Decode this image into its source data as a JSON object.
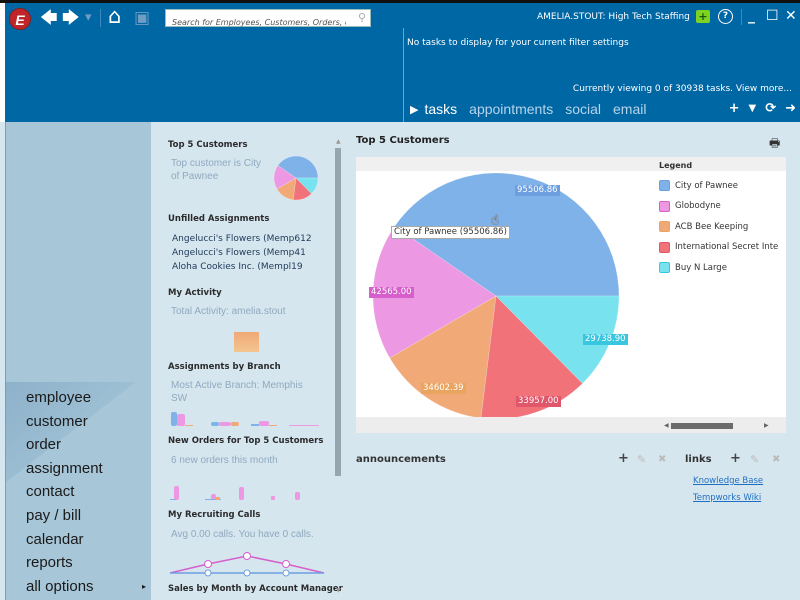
{
  "app": {
    "logo_letter": "E",
    "user_label": "AMELIA.STOUT: High Tech Staffing",
    "search": {
      "placeholder": "Search for Employees, Customers, Orders, etc."
    },
    "icons": [
      "back-icon",
      "forward-icon",
      "history-dropdown-icon",
      "home-icon",
      "save-icon",
      "search-icon",
      "add-business-icon",
      "help-icon",
      "minimize-icon",
      "maximize-icon",
      "close-icon"
    ],
    "glyphs": {
      "back": "🡄",
      "forward": "🡆",
      "history": "▾",
      "home": "⌂",
      "save": "▣",
      "search": "⚲",
      "add": "+",
      "help": "?",
      "minimize": "_",
      "maximize": "☐",
      "close": "✕"
    },
    "colors": {
      "topbar": "#0067a5",
      "nav": "#a7c6d8",
      "content": "#d6e6ef"
    }
  },
  "tasks": {
    "empty_message": "No tasks to display for your current filter settings",
    "viewing_text": "Currently viewing 0 of 30938 tasks. View more...",
    "tabs": [
      {
        "label": "tasks",
        "active": true
      },
      {
        "label": "appointments",
        "active": false
      },
      {
        "label": "social",
        "active": false
      },
      {
        "label": "email",
        "active": false
      }
    ],
    "action_glyphs": {
      "add": "+",
      "filter": "▼",
      "refresh": "⟳",
      "next": "➜"
    }
  },
  "nav": {
    "items": [
      "employee",
      "customer",
      "order",
      "assignment",
      "contact",
      "pay / bill",
      "calendar",
      "reports",
      "all options"
    ],
    "more_arrow": "▸"
  },
  "widgets": {
    "top5": {
      "title": "Top 5 Customers",
      "summary": "Top customer is City of Pawnee"
    },
    "unfilled": {
      "title": "Unfilled Assignments",
      "items": [
        "Angelucci's Flowers (Memp612",
        "Angelucci's Flowers (Memp41",
        "Aloha Cookies Inc. (Mempl19"
      ]
    },
    "activity": {
      "title": "My Activity",
      "summary": "Total Activity: amelia.stout"
    },
    "branch": {
      "title": "Assignments by Branch",
      "summary": "Most Active Branch: Memphis SW"
    },
    "new_orders": {
      "title": "New Orders for Top 5 Customers",
      "summary": "6 new orders this month"
    },
    "recruiting": {
      "title": "My Recruiting Calls",
      "summary": "Avg 0.00 calls. You have 0 calls."
    },
    "sales": {
      "title": "Sales by Month by Account Manager"
    }
  },
  "main": {
    "title": "Top 5 Customers",
    "tooltip": "City of Pawnee (95506.86)",
    "legend_title": "Legend"
  },
  "chart_data": {
    "type": "pie",
    "title": "Top 5 Customers",
    "categories": [
      "City of Pawnee",
      "Globodyne",
      "ACB Bee Keeping",
      "International Secret Inte",
      "Buy N Large"
    ],
    "values": [
      95506.86,
      42565.0,
      34602.39,
      33957.0,
      29738.9
    ],
    "labels": [
      "95506.86",
      "42565.00",
      "34602.39",
      "33957.00",
      "29738.90"
    ],
    "colors": [
      "#7fb2e8",
      "#ec98e2",
      "#f0a977",
      "#f2727a",
      "#78e3ef"
    ],
    "label_colors": [
      "#6d9fe0",
      "#d65fcb",
      "#e9a460",
      "#e0566a",
      "#39c6e0"
    ],
    "legend": "top-right"
  },
  "announcements": {
    "title": "announcements"
  },
  "links": {
    "title": "links",
    "items": [
      "Knowledge Base",
      "Tempworks Wiki"
    ]
  },
  "toolbar_glyphs": {
    "add": "+",
    "edit": "✎",
    "delete": "✖"
  }
}
